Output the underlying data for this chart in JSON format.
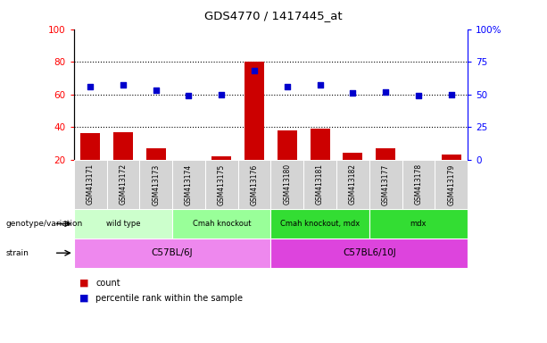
{
  "title": "GDS4770 / 1417445_at",
  "samples": [
    "GSM413171",
    "GSM413172",
    "GSM413173",
    "GSM413174",
    "GSM413175",
    "GSM413176",
    "GSM413180",
    "GSM413181",
    "GSM413182",
    "GSM413177",
    "GSM413178",
    "GSM413179"
  ],
  "counts": [
    36,
    37,
    27,
    20,
    22,
    80,
    38,
    39,
    24,
    27,
    20,
    23
  ],
  "percentile_ranks": [
    56,
    57,
    53,
    49,
    50,
    68,
    56,
    57,
    51,
    52,
    49,
    50
  ],
  "ylim_left": [
    20,
    100
  ],
  "ylim_right": [
    0,
    100
  ],
  "yticks_left": [
    20,
    40,
    60,
    80,
    100
  ],
  "yticks_right": [
    0,
    25,
    50,
    75,
    100
  ],
  "ytick_labels_right": [
    "0",
    "25",
    "50",
    "75",
    "100%"
  ],
  "bar_color": "#cc0000",
  "dot_color": "#0000cc",
  "genotype_groups": [
    {
      "label": "wild type",
      "start": 0,
      "end": 3,
      "color": "#ccffcc"
    },
    {
      "label": "Cmah knockout",
      "start": 3,
      "end": 6,
      "color": "#99ff99"
    },
    {
      "label": "Cmah knockout, mdx",
      "start": 6,
      "end": 9,
      "color": "#33dd33"
    },
    {
      "label": "mdx",
      "start": 9,
      "end": 12,
      "color": "#33dd33"
    }
  ],
  "strain_groups": [
    {
      "label": "C57BL/6J",
      "start": 0,
      "end": 6,
      "color": "#ee88ee"
    },
    {
      "label": "C57BL6/10J",
      "start": 6,
      "end": 12,
      "color": "#dd44dd"
    }
  ],
  "genotype_label": "genotype/variation",
  "strain_label": "strain",
  "legend_count": "count",
  "legend_percentile": "percentile rank within the sample",
  "plot_bg": "#f0f0f0",
  "label_bg": "#d0d0d0"
}
